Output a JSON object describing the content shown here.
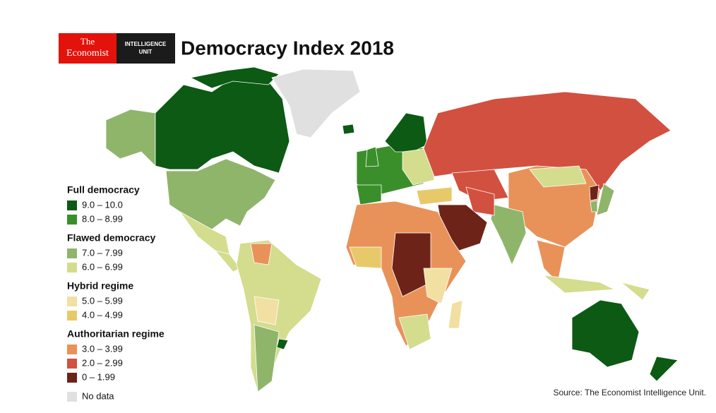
{
  "logo": {
    "brand_line1": "The",
    "brand_line2": "Economist",
    "unit_line1": "INTELLIGENCE",
    "unit_line2": "UNIT"
  },
  "title": "Democracy Index 2018",
  "legend": {
    "groups": [
      {
        "name": "Full democracy",
        "items": [
          {
            "label": "9.0 – 10.0",
            "color": "#0c5a14"
          },
          {
            "label": "8.0 – 8.99",
            "color": "#3a8f2a"
          }
        ]
      },
      {
        "name": "Flawed democracy",
        "items": [
          {
            "label": "7.0 – 7.99",
            "color": "#8fb56b"
          },
          {
            "label": "6.0 – 6.99",
            "color": "#d4dc8e"
          }
        ]
      },
      {
        "name": "Hybrid regime",
        "items": [
          {
            "label": "5.0 – 5.99",
            "color": "#f2e0a2"
          },
          {
            "label": "4.0 – 4.99",
            "color": "#e8c96a"
          }
        ]
      },
      {
        "name": "Authoritarian regime",
        "items": [
          {
            "label": "3.0 – 3.99",
            "color": "#e8925a"
          },
          {
            "label": "2.0 – 2.99",
            "color": "#d2503f"
          },
          {
            "label": "0 – 1.99",
            "color": "#6e2318"
          }
        ]
      }
    ],
    "no_data": {
      "label": "No data",
      "color": "#e0e0e0"
    }
  },
  "source": "Source: The Economist Intelligence Unit."
}
